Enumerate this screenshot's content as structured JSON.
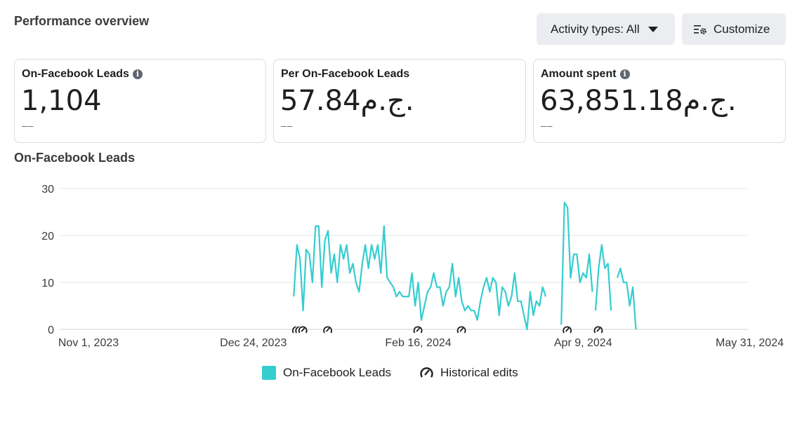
{
  "header": {
    "title": "Performance overview",
    "activity_button": "Activity types: All",
    "customize_button": "Customize"
  },
  "metrics": [
    {
      "label": "On-Facebook Leads",
      "value": "1,104",
      "delta": "––",
      "info": "i"
    },
    {
      "label": "Per On-Facebook Leads",
      "value": "57.84ج.م.",
      "delta": "––"
    },
    {
      "label": "Amount spent",
      "value": "63,851.18ج.م.",
      "delta": "––",
      "info": "i"
    }
  ],
  "chart_title": "On-Facebook Leads",
  "colors": {
    "series": "#35cdd0",
    "grid": "#e4e6eb",
    "axis_text": "#3a3b3c"
  },
  "chart_data": {
    "type": "line",
    "title": "On-Facebook Leads",
    "x_tick_labels": [
      "Nov 1, 2023",
      "Dec 24, 2023",
      "Feb 16, 2024",
      "Apr 9, 2024",
      "May 31, 2024"
    ],
    "y_tick_labels": [
      "0",
      "10",
      "20",
      "30"
    ],
    "ylim": [
      0,
      30
    ],
    "x_start": "Nov 1, 2023",
    "x_days_total": 212,
    "series": [
      {
        "name": "On-Facebook Leads",
        "segments": [
          {
            "start_day": 66,
            "values": [
              7,
              18,
              15,
              4,
              17,
              16,
              10,
              22,
              22,
              9,
              19,
              21,
              12,
              16,
              10,
              18,
              15,
              18,
              12,
              14,
              10,
              8,
              14,
              18,
              13,
              18,
              15,
              18,
              12,
              22,
              11,
              10,
              9,
              7,
              8,
              7,
              7,
              7,
              12,
              5,
              10,
              2,
              5,
              8,
              9,
              12,
              9,
              9,
              5,
              8,
              9,
              14,
              7,
              11,
              6,
              4,
              5,
              4,
              4,
              2,
              6,
              9,
              11,
              8,
              11,
              10,
              3,
              9,
              8,
              5,
              7,
              12,
              6,
              6,
              3,
              0,
              8,
              3,
              6,
              5,
              9,
              7
            ]
          },
          {
            "start_day": 152,
            "values": [
              1,
              27,
              26,
              11,
              16,
              16,
              10,
              12,
              11,
              16,
              8
            ]
          },
          {
            "start_day": 163,
            "values": [
              4,
              13,
              18,
              13,
              14,
              4
            ]
          },
          {
            "start_day": 170,
            "values": [
              11,
              13,
              10,
              10,
              5,
              9,
              0
            ]
          }
        ]
      }
    ],
    "historical_edit_days": [
      66,
      67,
      68,
      76,
      105,
      119,
      153,
      163
    ],
    "legend": [
      "On-Facebook Leads",
      "Historical edits"
    ]
  }
}
